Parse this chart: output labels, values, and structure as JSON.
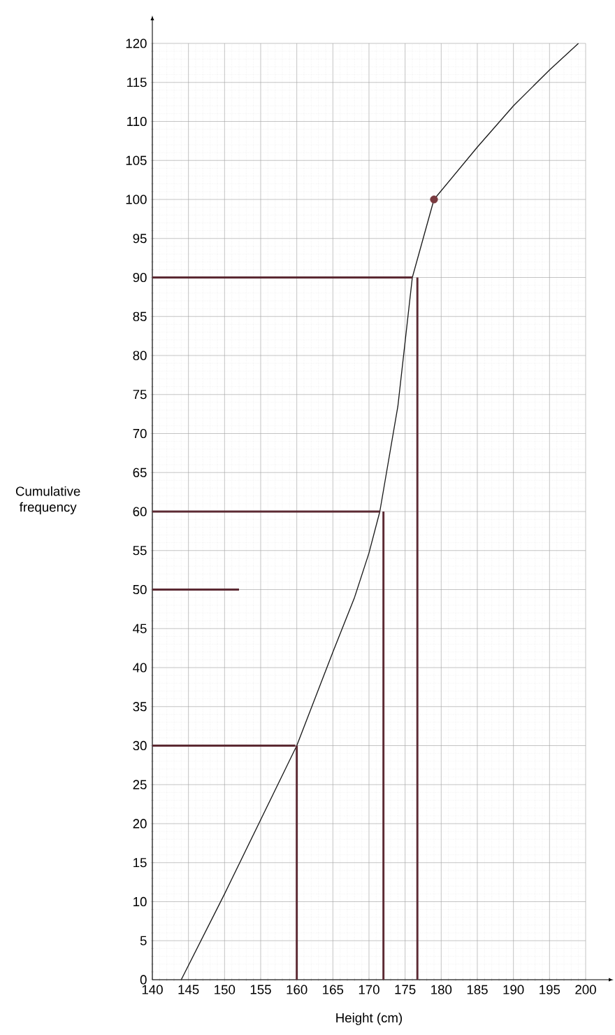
{
  "chart_data": {
    "type": "line",
    "xlabel": "Height (cm)",
    "ylabel": "Cumulative frequency",
    "xlim": [
      140,
      200
    ],
    "ylim": [
      0,
      120
    ],
    "xticks": [
      140,
      145,
      150,
      155,
      160,
      165,
      170,
      175,
      180,
      185,
      190,
      195,
      200
    ],
    "yticks": [
      0,
      5,
      10,
      15,
      20,
      25,
      30,
      35,
      40,
      45,
      50,
      55,
      60,
      65,
      70,
      75,
      80,
      85,
      90,
      95,
      100,
      105,
      110,
      115,
      120
    ],
    "grid": true,
    "series": [
      {
        "color": "#1a1a1a",
        "x": [
          144,
          150,
          155,
          160,
          165,
          168,
          170,
          171.5,
          174,
          176,
          179,
          185,
          190,
          195,
          199
        ],
        "values": [
          0,
          11,
          20.5,
          30,
          42,
          49,
          54.7,
          60,
          73.5,
          90,
          100,
          106.7,
          112,
          116.6,
          120
        ]
      },
      {
        "color": "#5c2a33",
        "x": [
          140,
          176
        ],
        "values": [
          90,
          90
        ]
      },
      {
        "color": "#5c2a33",
        "x": [
          140,
          171.5
        ],
        "values": [
          60,
          60
        ]
      },
      {
        "color": "#5c2a33",
        "x": [
          140,
          152
        ],
        "values": [
          50,
          50
        ]
      },
      {
        "color": "#5c2a33",
        "x": [
          140,
          159.8
        ],
        "values": [
          30,
          30
        ]
      },
      {
        "color": "#5c2a33",
        "x": [
          160,
          160
        ],
        "values": [
          0,
          30
        ]
      },
      {
        "color": "#5c2a33",
        "x": [
          172,
          172
        ],
        "values": [
          0,
          60
        ]
      },
      {
        "color": "#5c2a33",
        "x": [
          176.7,
          176.7
        ],
        "values": [
          0,
          90
        ]
      },
      {
        "type": "scatter",
        "color": "#7a3a40",
        "x": [
          179
        ],
        "values": [
          100
        ]
      }
    ]
  }
}
